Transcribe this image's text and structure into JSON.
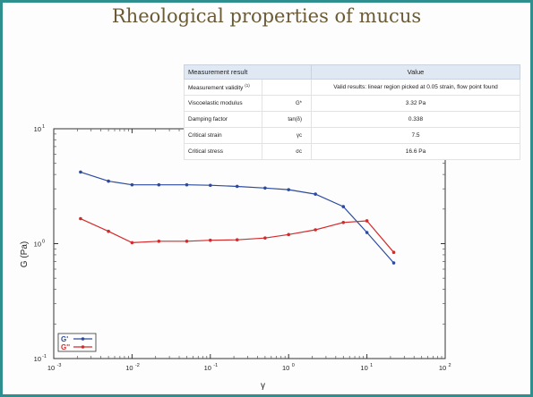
{
  "title": "Rheological properties of mucus",
  "table": {
    "headers": [
      "Measurement result",
      "Value"
    ],
    "rows": [
      {
        "name": "Measurement validity",
        "note": "(1)",
        "symbol": "",
        "value": "Valid results: linear region picked at 0.05 strain, flow point found"
      },
      {
        "name": "Viscoelastic modulus",
        "note": "",
        "symbol": "G*",
        "value": "3.32 Pa"
      },
      {
        "name": "Damping factor",
        "note": "",
        "symbol": "tan(δ)",
        "value": "0.338"
      },
      {
        "name": "Critical strain",
        "note": "",
        "symbol": "γc",
        "value": "7.5"
      },
      {
        "name": "Critical stress",
        "note": "",
        "symbol": "σc",
        "value": "16.6 Pa"
      }
    ]
  },
  "chart_data": {
    "type": "line",
    "xlabel": "γ",
    "ylabel": "G (Pa)",
    "xscale": "log",
    "yscale": "log",
    "xlim": [
      0.001,
      100
    ],
    "ylim": [
      0.1,
      10
    ],
    "x_ticks": [
      {
        "base": "10",
        "exp": "-3"
      },
      {
        "base": "10",
        "exp": "-2"
      },
      {
        "base": "10",
        "exp": "-1"
      },
      {
        "base": "10",
        "exp": "0"
      },
      {
        "base": "10",
        "exp": "1"
      },
      {
        "base": "10",
        "exp": "2"
      }
    ],
    "y_ticks": [
      {
        "base": "10",
        "exp": "-1"
      },
      {
        "base": "10",
        "exp": "0"
      },
      {
        "base": "10",
        "exp": "1"
      }
    ],
    "legend_position": "bottom-left",
    "series": [
      {
        "name": "G'",
        "color": "#2b4aa0",
        "x": [
          0.0022,
          0.005,
          0.01,
          0.022,
          0.05,
          0.1,
          0.22,
          0.5,
          1.0,
          2.2,
          5.0,
          10.0,
          22.0
        ],
        "y": [
          4.2,
          3.5,
          3.25,
          3.25,
          3.25,
          3.22,
          3.15,
          3.05,
          2.95,
          2.7,
          2.1,
          1.25,
          0.68
        ]
      },
      {
        "name": "G''",
        "color": "#d42a2a",
        "x": [
          0.0022,
          0.005,
          0.01,
          0.022,
          0.05,
          0.1,
          0.22,
          0.5,
          1.0,
          2.2,
          5.0,
          10.0,
          22.0
        ],
        "y": [
          1.65,
          1.28,
          1.02,
          1.05,
          1.05,
          1.07,
          1.08,
          1.12,
          1.2,
          1.32,
          1.53,
          1.58,
          0.84
        ]
      }
    ]
  }
}
